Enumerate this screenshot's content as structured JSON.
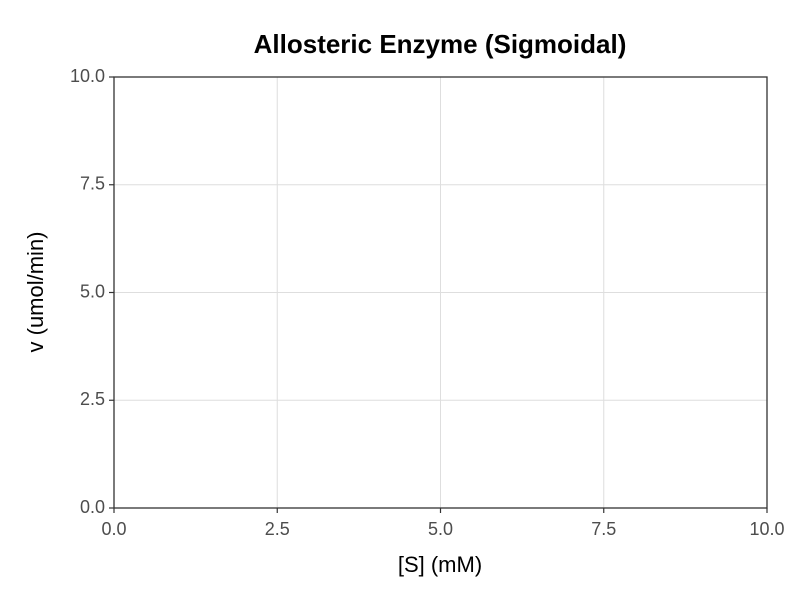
{
  "chart_data": {
    "type": "line",
    "title": "Allosteric Enzyme (Sigmoidal)",
    "x_label": "[S] (mM)",
    "y_label": "v (umol/min)",
    "xlim": [
      0,
      10
    ],
    "ylim": [
      0,
      10
    ],
    "xticks": [
      {
        "value": 0,
        "label": "0.0"
      },
      {
        "value": 2.5,
        "label": "2.5"
      },
      {
        "value": 5,
        "label": "5.0"
      },
      {
        "value": 7.5,
        "label": "7.5"
      },
      {
        "value": 10,
        "label": "10.0"
      }
    ],
    "yticks": [
      {
        "value": 0,
        "label": "0.0"
      },
      {
        "value": 2.5,
        "label": "2.5"
      },
      {
        "value": 5,
        "label": "5.0"
      },
      {
        "value": 7.5,
        "label": "7.5"
      },
      {
        "value": 10,
        "label": "10.0"
      }
    ],
    "grid": true,
    "series": []
  }
}
